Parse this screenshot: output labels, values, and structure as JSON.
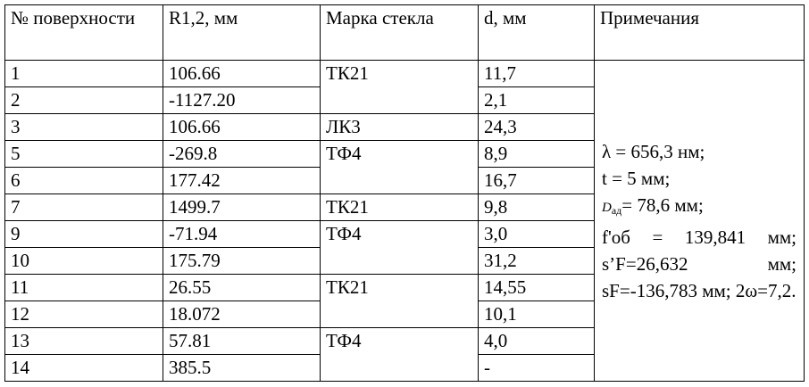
{
  "headers": [
    "№ поверхности",
    "R1,2, мм",
    "Марка стекла",
    "d, мм",
    "Примечания"
  ],
  "rows": [
    {
      "n": "1",
      "r": "106.66",
      "glass": "ТК21",
      "d": "11,7"
    },
    {
      "n": "2",
      "r": "-1127.20",
      "d": "2,1"
    },
    {
      "n": "3",
      "r": "106.66",
      "glass": "ЛК3",
      "d": "24,3"
    },
    {
      "n": "5",
      "r": "-269.8",
      "glass": "ТФ4",
      "d": "8,9"
    },
    {
      "n": "6",
      "r": "177.42",
      "d": "16,7"
    },
    {
      "n": "7",
      "r": "1499.7",
      "glass": "ТК21",
      "d": "9,8"
    },
    {
      "n": "9",
      "r": "-71.94",
      "glass": "ТФ4",
      "d": "3,0"
    },
    {
      "n": "10",
      "r": "175.79",
      "d": "31,2"
    },
    {
      "n": "11",
      "r": "26.55",
      "glass": "ТК21",
      "d": "14,55"
    },
    {
      "n": "12",
      "r": "18.072",
      "d": "10,1"
    },
    {
      "n": "13",
      "r": "57.81",
      "glass": "ТФ4",
      "d": "4,0"
    },
    {
      "n": "14",
      "r": "385.5",
      "d": "-"
    }
  ],
  "notes": {
    "lambda": "λ = 656,3 нм;",
    "t": "t = 5 мм;",
    "D_symbol": "D",
    "D_sub": "ад",
    "D_value": "= 78,6 мм;",
    "f": "f'об = 139,841 мм;",
    "s": "s’F=26,632 мм; sF=-136,783 мм; 2ω=7,2."
  }
}
